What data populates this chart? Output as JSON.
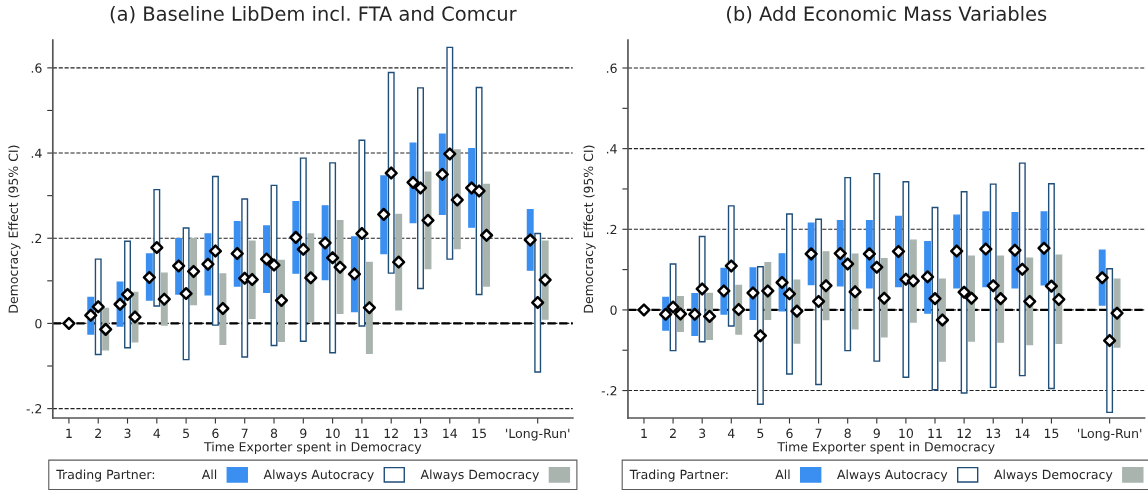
{
  "chart_data": [
    {
      "type": "bar",
      "title": "(a) Baseline LibDem incl. FTA and Comcur",
      "xlabel": "Time Exporter spent in Democracy",
      "ylabel": "Democracy Effect (95% CI)",
      "legend_title": "Trading Partner:",
      "legend": "bottom",
      "grid": "y",
      "categories": [
        "1",
        "2",
        "3",
        "4",
        "5",
        "6",
        "7",
        "8",
        "9",
        "10",
        "11",
        "12",
        "13",
        "14",
        "15",
        null,
        "'Long-Run'"
      ],
      "ylim": [
        -0.222,
        0.665
      ],
      "yticks": [
        {
          "value": -0.2,
          "label": "-.2"
        },
        {
          "value": -0.1,
          "label": null
        },
        0,
        {
          "value": 0.1,
          "label": null
        },
        {
          "value": 0.2,
          "label": ".2"
        },
        {
          "value": 0.3,
          "label": null
        },
        {
          "value": 0.4,
          "label": ".4"
        },
        {
          "value": 0.5,
          "label": null
        },
        {
          "value": 0.6,
          "label": ".6"
        }
      ],
      "ref_lines": [
        {
          "axis": "y",
          "value": 0,
          "line_style": "dashed",
          "color": "#000000"
        }
      ],
      "series": [
        {
          "name": "All",
          "color": "#3a8ff0",
          "base": [
            null,
            -0.025,
            -0.006,
            0.055,
            0.069,
            0.067,
            0.088,
            0.073,
            0.118,
            0.103,
            0.028,
            0.164,
            0.237,
            0.256,
            0.226,
            null,
            0.125
          ],
          "values": [
            null,
            0.086,
            0.103,
            0.108,
            0.13,
            0.143,
            0.151,
            0.156,
            0.168,
            0.173,
            0.175,
            0.182,
            0.186,
            0.188,
            0.184,
            null,
            0.142
          ]
        },
        {
          "name": "Always Autocracy",
          "color": "#ffffff",
          "base": [
            null,
            -0.073,
            -0.057,
            0.041,
            -0.085,
            -0.004,
            -0.079,
            -0.052,
            -0.042,
            -0.069,
            -0.006,
            0.118,
            0.082,
            0.151,
            0.068,
            null,
            -0.114
          ],
          "values": [
            null,
            0.224,
            0.25,
            0.273,
            0.309,
            0.349,
            0.371,
            0.376,
            0.43,
            0.446,
            0.436,
            0.471,
            0.471,
            0.497,
            0.486,
            null,
            0.325
          ]
        },
        {
          "name": "Always Democracy",
          "color": "#a8b4ad",
          "base": [
            null,
            -0.062,
            -0.043,
            -0.004,
            0.044,
            -0.049,
            0.012,
            -0.042,
            0.004,
            0.024,
            -0.07,
            0.032,
            0.129,
            0.176,
            0.088,
            null,
            0.01
          ],
          "values": [
            null,
            0.097,
            0.116,
            0.122,
            0.155,
            0.165,
            0.181,
            0.19,
            0.206,
            0.217,
            0.213,
            0.224,
            0.226,
            0.231,
            0.238,
            null,
            0.183
          ]
        },
        {
          "type": "scatter",
          "marker": "diamond",
          "color": "#000000",
          "values": [
            null,
            0.019,
            0.045,
            0.108,
            0.135,
            0.139,
            0.164,
            0.151,
            0.202,
            0.189,
            0.116,
            0.256,
            0.331,
            0.35,
            0.318,
            null,
            0.196
          ]
        },
        {
          "type": "scatter",
          "marker": "diamond",
          "color": "#000000",
          "values": [
            0,
            0.039,
            0.068,
            0.178,
            0.07,
            0.17,
            0.106,
            0.137,
            0.174,
            0.154,
            0.211,
            0.353,
            0.318,
            0.398,
            0.311,
            null,
            0.049
          ]
        },
        {
          "type": "scatter",
          "marker": "diamond",
          "color": "#000000",
          "values": [
            null,
            -0.014,
            0.015,
            0.057,
            0.122,
            0.035,
            0.103,
            0.054,
            0.107,
            0.132,
            0.037,
            0.144,
            0.242,
            0.29,
            0.207,
            null,
            0.102
          ]
        }
      ]
    },
    {
      "type": "bar",
      "title": "(b) Add Economic Mass Variables",
      "xlabel": "Time Exporter spent in Democracy",
      "ylabel": "Democracy Effect (95% CI)",
      "legend_title": "Trading Partner:",
      "legend": "bottom",
      "grid": "y",
      "categories": [
        "1",
        "2",
        "3",
        "4",
        "5",
        "6",
        "7",
        "8",
        "9",
        "10",
        "11",
        "12",
        "13",
        "14",
        "15",
        null,
        "'Long-Run'"
      ],
      "ylim": [
        -0.268,
        0.669
      ],
      "yticks": [
        {
          "value": -0.2,
          "label": "-.2"
        },
        {
          "value": -0.1,
          "label": null
        },
        0,
        {
          "value": 0.1,
          "label": null
        },
        {
          "value": 0.2,
          "label": ".2"
        },
        {
          "value": 0.3,
          "label": null
        },
        {
          "value": 0.4,
          "label": ".4"
        },
        {
          "value": 0.5,
          "label": null
        },
        {
          "value": 0.6,
          "label": ".6"
        }
      ],
      "ref_lines": [
        {
          "axis": "y",
          "value": 0,
          "line_style": "dashed",
          "color": "#000000"
        }
      ],
      "series": [
        {
          "name": "All",
          "color": "#3a8ff0",
          "base": [
            null,
            -0.05,
            -0.063,
            -0.01,
            -0.023,
            -0.002,
            0.063,
            0.06,
            0.055,
            0.058,
            -0.008,
            0.055,
            0.058,
            0.055,
            0.062,
            null,
            0.012
          ],
          "values": [
            null,
            0.081,
            0.103,
            0.113,
            0.127,
            0.141,
            0.152,
            0.161,
            0.166,
            0.174,
            0.177,
            0.18,
            0.185,
            0.186,
            0.181,
            null,
            0.136
          ]
        },
        {
          "name": "Always Autocracy",
          "color": "#ffffff",
          "base": [
            null,
            -0.101,
            -0.079,
            -0.04,
            -0.234,
            -0.159,
            -0.185,
            -0.101,
            -0.127,
            -0.167,
            -0.198,
            -0.206,
            -0.192,
            -0.163,
            -0.195,
            null,
            -0.254
          ],
          "values": [
            null,
            0.215,
            0.261,
            0.298,
            0.341,
            0.397,
            0.41,
            0.429,
            0.465,
            0.485,
            0.452,
            0.499,
            0.504,
            0.527,
            0.508,
            null,
            0.356
          ]
        },
        {
          "name": "Always Democracy",
          "color": "#a8b4ad",
          "base": [
            null,
            -0.053,
            -0.073,
            -0.06,
            -0.023,
            -0.082,
            -0.024,
            -0.047,
            -0.067,
            -0.03,
            -0.127,
            -0.077,
            -0.08,
            -0.086,
            -0.083,
            null,
            -0.092
          ],
          "values": [
            null,
            0.086,
            0.114,
            0.121,
            0.14,
            0.156,
            0.168,
            0.185,
            0.194,
            0.203,
            0.203,
            0.21,
            0.213,
            0.214,
            0.219,
            null,
            0.168
          ]
        },
        {
          "type": "scatter",
          "marker": "diamond",
          "color": "#000000",
          "values": [
            null,
            -0.011,
            -0.011,
            0.047,
            0.042,
            0.068,
            0.139,
            0.14,
            0.139,
            0.145,
            0.082,
            0.146,
            0.151,
            0.148,
            0.153,
            null,
            0.08
          ]
        },
        {
          "type": "scatter",
          "marker": "diamond",
          "color": "#000000",
          "values": [
            0,
            0.007,
            0.052,
            0.109,
            -0.064,
            0.04,
            0.021,
            0.114,
            0.106,
            0.076,
            0.028,
            0.044,
            0.06,
            0.101,
            0.059,
            null,
            -0.076
          ]
        },
        {
          "type": "scatter",
          "marker": "diamond",
          "color": "#000000",
          "values": [
            null,
            -0.01,
            -0.016,
            0.001,
            0.047,
            -0.003,
            0.06,
            0.045,
            0.029,
            0.072,
            -0.025,
            0.029,
            0.028,
            0.021,
            0.026,
            null,
            -0.008
          ]
        }
      ]
    }
  ]
}
